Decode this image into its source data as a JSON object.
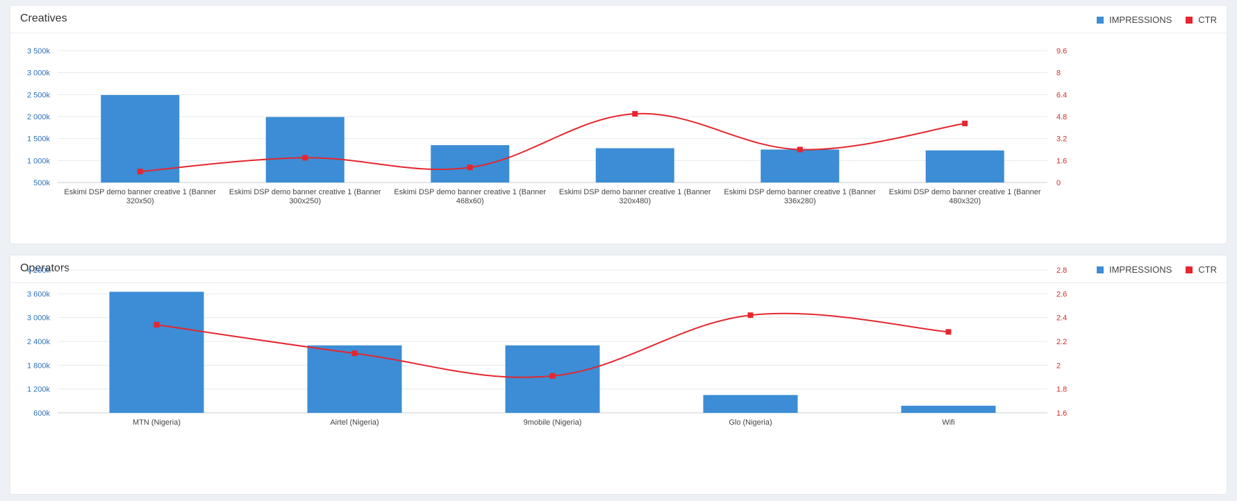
{
  "colors": {
    "impressions": "#3c8dd5",
    "ctr": "#e5262e",
    "left_axis_text": "#2d6fb8",
    "right_axis_text": "#d42a2a",
    "grid": "#e6e9ee",
    "category_text": "#444444"
  },
  "chart_data": [
    {
      "type": "bar",
      "title": "Creatives",
      "legend": {
        "placement": "top-right",
        "items": [
          "IMPRESSIONS",
          "CTR"
        ]
      },
      "grid": true,
      "categories": [
        [
          "Eskimi DSP demo banner creative 1 (Banner",
          "320x50)"
        ],
        [
          "Eskimi DSP demo banner creative 1 (Banner",
          "300x250)"
        ],
        [
          "Eskimi DSP demo banner creative 1 (Banner",
          "468x60)"
        ],
        [
          "Eskimi DSP demo banner creative 1 (Banner",
          "320x480)"
        ],
        [
          "Eskimi DSP demo banner creative 1 (Banner",
          "336x280)"
        ],
        [
          "Eskimi DSP demo banner creative 1 (Banner",
          "480x320)"
        ]
      ],
      "series": [
        {
          "name": "IMPRESSIONS",
          "type": "bar",
          "axis": "left",
          "values": [
            2490,
            1990,
            1350,
            1280,
            1250,
            1230
          ]
        },
        {
          "name": "CTR",
          "type": "line",
          "axis": "right",
          "values": [
            0.8,
            1.8,
            1.1,
            5.0,
            2.4,
            4.3
          ]
        }
      ],
      "left_axis": {
        "ylim": [
          500,
          3500
        ],
        "ticks": [
          500,
          1000,
          1500,
          2000,
          2500,
          3000,
          3500
        ],
        "tick_labels": [
          "500k",
          "1 000k",
          "1 500k",
          "2 000k",
          "2 500k",
          "3 000k",
          "3 500k"
        ]
      },
      "right_axis": {
        "ylim": [
          0,
          9.6
        ],
        "ticks": [
          0,
          1.6,
          3.2,
          4.8,
          6.4,
          8,
          9.6
        ],
        "tick_labels": [
          "0",
          "1.6",
          "3.2",
          "4.8",
          "6.4",
          "8",
          "9.6"
        ]
      }
    },
    {
      "type": "bar",
      "title": "Operators",
      "legend": {
        "placement": "top-right",
        "items": [
          "IMPRESSIONS",
          "CTR"
        ]
      },
      "grid": true,
      "categories": [
        [
          "MTN (Nigeria)"
        ],
        [
          "Airtel (Nigeria)"
        ],
        [
          "9mobile (Nigeria)"
        ],
        [
          "Glo (Nigeria)"
        ],
        [
          "Wifi"
        ]
      ],
      "series": [
        {
          "name": "IMPRESSIONS",
          "type": "bar",
          "axis": "left",
          "values": [
            3650,
            2300,
            2300,
            1050,
            780
          ]
        },
        {
          "name": "CTR",
          "type": "line",
          "axis": "right",
          "values": [
            2.34,
            2.1,
            1.91,
            2.42,
            2.28
          ]
        }
      ],
      "left_axis": {
        "ylim": [
          600,
          4200
        ],
        "ticks": [
          600,
          1200,
          1800,
          2400,
          3000,
          3600,
          4200
        ],
        "tick_labels": [
          "600k",
          "1 200k",
          "1 800k",
          "2 400k",
          "3 000k",
          "3 600k",
          "4 200k"
        ]
      },
      "right_axis": {
        "ylim": [
          1.6,
          2.8
        ],
        "ticks": [
          1.6,
          1.8,
          2.0,
          2.2,
          2.4,
          2.6,
          2.8
        ],
        "tick_labels": [
          "1.6",
          "1.8",
          "2",
          "2.2",
          "2.4",
          "2.6",
          "2.8"
        ]
      }
    }
  ]
}
